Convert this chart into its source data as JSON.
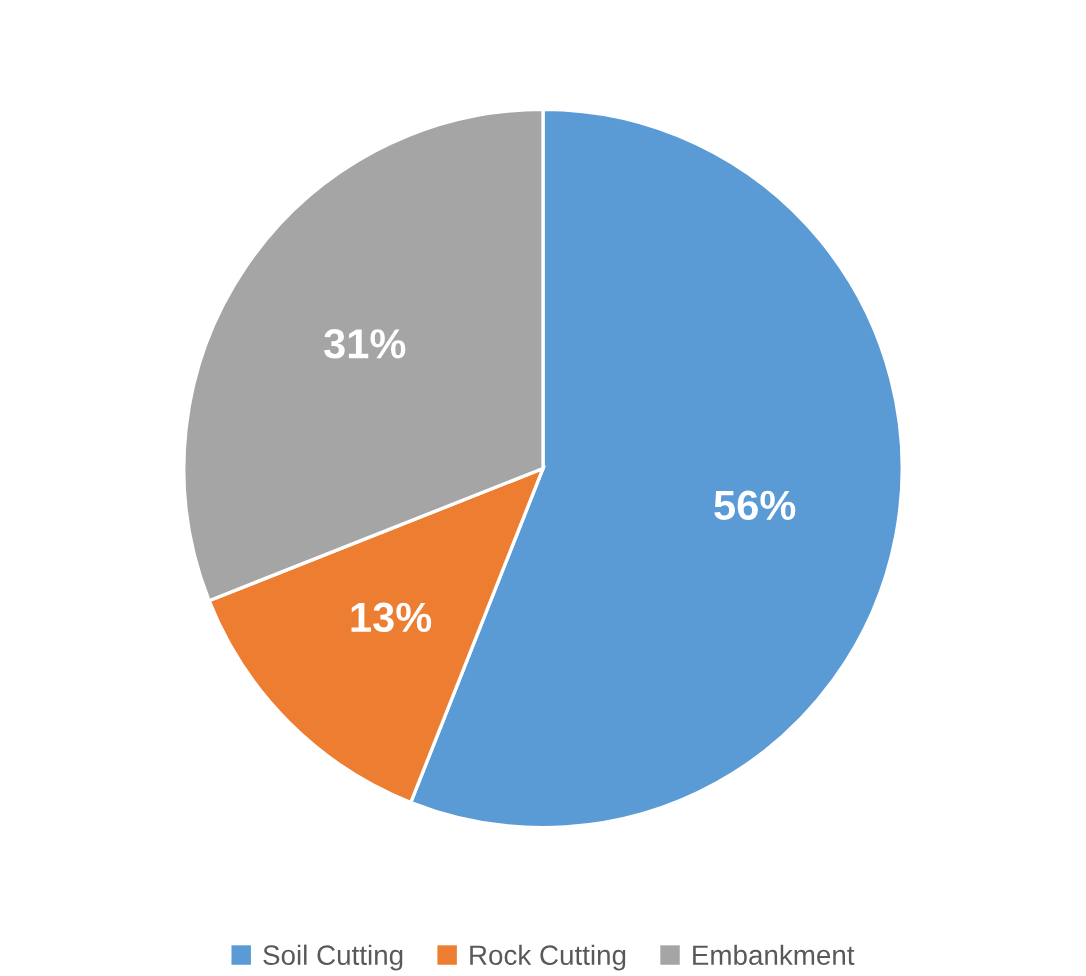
{
  "chart_data": {
    "type": "pie",
    "categories": [
      "Soil Cutting",
      "Rock Cutting",
      "Embankment"
    ],
    "values": [
      56,
      13,
      31
    ],
    "colors": [
      "#5b9bd5",
      "#ed7d31",
      "#a5a5a5"
    ],
    "value_labels": [
      "56%",
      "13%",
      "31%"
    ],
    "legend": "bottom"
  }
}
